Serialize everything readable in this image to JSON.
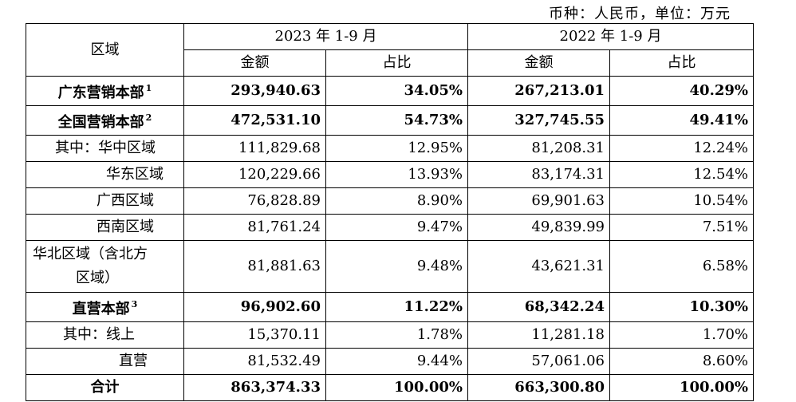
{
  "currency_note": "币种：人民币，单位：万元",
  "header": {
    "region": "区域",
    "period_2023": "2023 年 1-9 月",
    "period_2022": "2022 年 1-9 月",
    "amount": "金额",
    "ratio": "占比"
  },
  "rows": [
    {
      "label": "广东营销本部",
      "sup": "1",
      "amount_2023": "293,940.63",
      "ratio_2023": "34.05%",
      "amount_2022": "267,213.01",
      "ratio_2022": "40.29%",
      "bold": true
    },
    {
      "label": "全国营销本部",
      "sup": "2",
      "amount_2023": "472,531.10",
      "ratio_2023": "54.73%",
      "amount_2022": "327,745.55",
      "ratio_2022": "49.41%",
      "bold": true
    },
    {
      "label": "其中：华中区域",
      "amount_2023": "111,829.68",
      "ratio_2023": "12.95%",
      "amount_2022": "81,208.31",
      "ratio_2022": "12.24%"
    },
    {
      "label": "华东区域",
      "amount_2023": "120,229.66",
      "ratio_2023": "13.93%",
      "amount_2022": "83,174.31",
      "ratio_2022": "12.54%"
    },
    {
      "label": "广西区域",
      "amount_2023": "76,828.89",
      "ratio_2023": "8.90%",
      "amount_2022": "69,901.63",
      "ratio_2022": "10.54%"
    },
    {
      "label": "西南区域",
      "amount_2023": "81,761.24",
      "ratio_2023": "9.47%",
      "amount_2022": "49,839.99",
      "ratio_2022": "7.51%"
    },
    {
      "label_line1": "华北区域（含北方",
      "label_line2": "区域）",
      "amount_2023": "81,881.63",
      "ratio_2023": "9.48%",
      "amount_2022": "43,621.31",
      "ratio_2022": "6.58%"
    },
    {
      "label": "直营本部",
      "sup": "3",
      "amount_2023": "96,902.60",
      "ratio_2023": "11.22%",
      "amount_2022": "68,342.24",
      "ratio_2022": "10.30%",
      "bold": true
    },
    {
      "label": "其中：线上",
      "amount_2023": "15,370.11",
      "ratio_2023": "1.78%",
      "amount_2022": "11,281.18",
      "ratio_2022": "1.70%"
    },
    {
      "label": "直营",
      "amount_2023": "81,532.49",
      "ratio_2023": "9.44%",
      "amount_2022": "57,061.06",
      "ratio_2022": "8.60%"
    },
    {
      "label": "合计",
      "amount_2023": "863,374.33",
      "ratio_2023": "100.00%",
      "amount_2022": "663,300.80",
      "ratio_2022": "100.00%",
      "bold": true
    }
  ]
}
